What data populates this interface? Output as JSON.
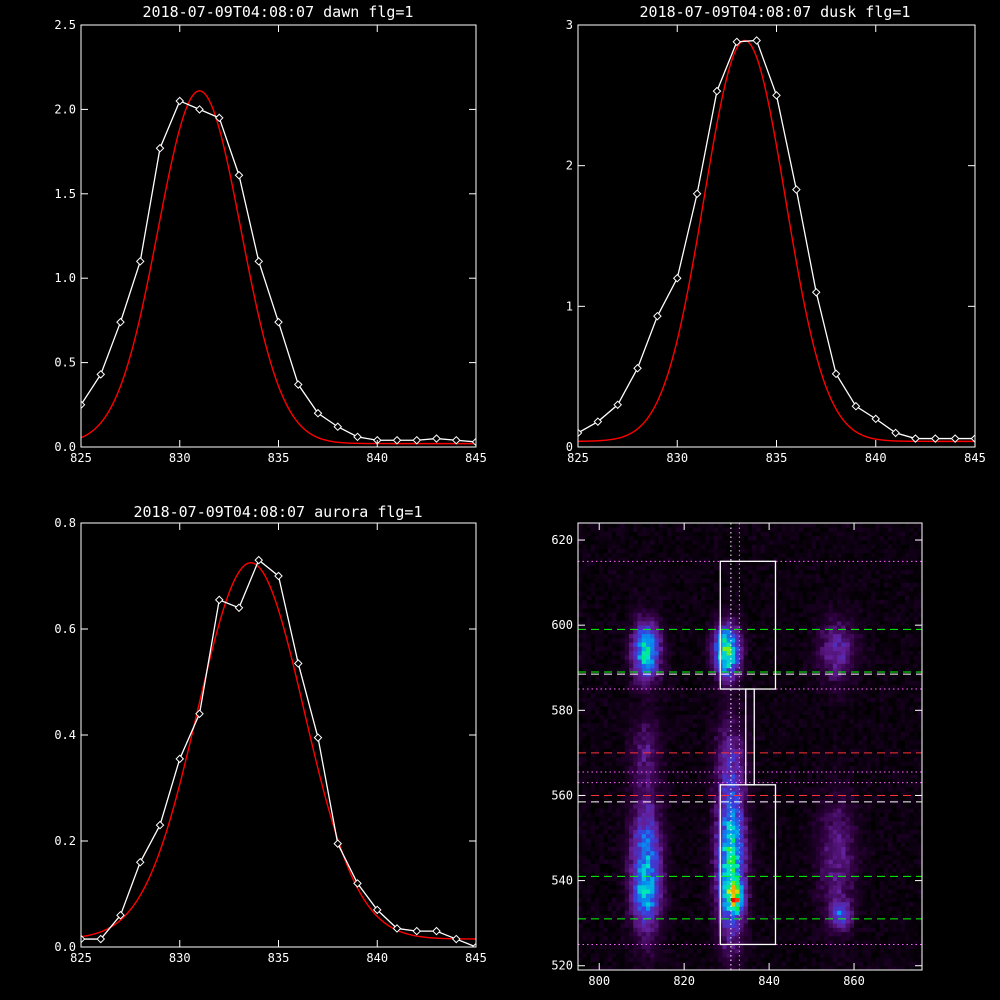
{
  "chart_data": [
    {
      "id": "dawn",
      "type": "line",
      "title": "2018-07-09T04:08:07 dawn flg=1",
      "xlim": [
        825,
        845
      ],
      "ylim": [
        0,
        2.5
      ],
      "xticks": [
        825,
        830,
        835,
        840,
        845
      ],
      "xtick_labels": [
        "825",
        "830",
        "835",
        "840",
        "845"
      ],
      "yticks": [
        0,
        0.5,
        1.0,
        1.5,
        2.0,
        2.5
      ],
      "ytick_labels": [
        "0.0",
        "0.5",
        "1.0",
        "1.5",
        "2.0",
        "2.5"
      ],
      "series": [
        {
          "style": "data",
          "color": "#ffffff",
          "marker": "diamond",
          "x": [
            825,
            826,
            827,
            828,
            829,
            830,
            831,
            832,
            833,
            834,
            835,
            836,
            837,
            838,
            839,
            840,
            841,
            842,
            843,
            844,
            845
          ],
          "y": [
            0.25,
            0.43,
            0.74,
            1.1,
            1.77,
            2.05,
            2.0,
            1.95,
            1.61,
            1.1,
            0.74,
            0.37,
            0.2,
            0.12,
            0.06,
            0.04,
            0.04,
            0.04,
            0.05,
            0.04,
            0.03
          ]
        },
        {
          "style": "fit",
          "color": "#ff0000",
          "model": "gaussian",
          "amplitude": 2.09,
          "center": 831.0,
          "sigma": 2.1,
          "baseline": 0.02
        }
      ]
    },
    {
      "id": "dusk",
      "type": "line",
      "title": "2018-07-09T04:08:07 dusk flg=1",
      "xlim": [
        825,
        845
      ],
      "ylim": [
        0,
        3
      ],
      "xticks": [
        825,
        830,
        835,
        840,
        845
      ],
      "xtick_labels": [
        "825",
        "830",
        "835",
        "840",
        "845"
      ],
      "yticks": [
        0,
        1,
        2,
        3
      ],
      "ytick_labels": [
        "0",
        "1",
        "2",
        "3"
      ],
      "series": [
        {
          "style": "data",
          "color": "#ffffff",
          "marker": "diamond",
          "x": [
            825,
            826,
            827,
            828,
            829,
            830,
            831,
            832,
            833,
            834,
            835,
            836,
            837,
            838,
            839,
            840,
            841,
            842,
            843,
            844,
            845
          ],
          "y": [
            0.1,
            0.18,
            0.3,
            0.56,
            0.93,
            1.2,
            1.8,
            2.53,
            2.88,
            2.89,
            2.5,
            1.83,
            1.1,
            0.52,
            0.29,
            0.2,
            0.1,
            0.06,
            0.06,
            0.06,
            0.06
          ]
        },
        {
          "style": "fit",
          "color": "#ff0000",
          "model": "gaussian",
          "amplitude": 2.85,
          "center": 833.4,
          "sigma": 2.05,
          "baseline": 0.04
        }
      ]
    },
    {
      "id": "aurora",
      "type": "line",
      "title": "2018-07-09T04:08:07 aurora flg=1",
      "xlim": [
        825,
        845
      ],
      "ylim": [
        0,
        0.8
      ],
      "xticks": [
        825,
        830,
        835,
        840,
        845
      ],
      "xtick_labels": [
        "825",
        "830",
        "835",
        "840",
        "845"
      ],
      "yticks": [
        0,
        0.2,
        0.4,
        0.6,
        0.8
      ],
      "ytick_labels": [
        "0.0",
        "0.2",
        "0.4",
        "0.6",
        "0.8"
      ],
      "series": [
        {
          "style": "data",
          "color": "#ffffff",
          "marker": "diamond",
          "x": [
            825,
            826,
            827,
            828,
            829,
            830,
            831,
            832,
            833,
            834,
            835,
            836,
            837,
            838,
            839,
            840,
            841,
            842,
            843,
            844,
            845
          ],
          "y": [
            0.015,
            0.015,
            0.06,
            0.16,
            0.23,
            0.355,
            0.44,
            0.655,
            0.64,
            0.73,
            0.7,
            0.535,
            0.395,
            0.195,
            0.12,
            0.07,
            0.035,
            0.03,
            0.03,
            0.015,
            0.0
          ]
        },
        {
          "style": "fit",
          "color": "#ff0000",
          "model": "gaussian",
          "amplitude": 0.71,
          "center": 833.6,
          "sigma": 2.7,
          "baseline": 0.015
        }
      ]
    },
    {
      "id": "spectrogram",
      "type": "heatmap",
      "title": "",
      "xlim": [
        795,
        876
      ],
      "ylim": [
        519,
        624
      ],
      "xticks": [
        800,
        820,
        840,
        860
      ],
      "xtick_labels": [
        "800",
        "820",
        "840",
        "860"
      ],
      "yticks": [
        520,
        540,
        560,
        580,
        600,
        620
      ],
      "ytick_labels": [
        "520",
        "540",
        "560",
        "580",
        "600",
        "620"
      ],
      "colormap": "rainbow-on-black",
      "blobs": [
        {
          "cx": 811,
          "cy": 594,
          "sx": 2.2,
          "sy": 4.5,
          "peak": 0.5
        },
        {
          "cx": 830,
          "cy": 594,
          "sx": 2.0,
          "sy": 4.0,
          "peak": 0.62
        },
        {
          "cx": 856,
          "cy": 594,
          "sx": 3.0,
          "sy": 5.0,
          "peak": 0.18
        },
        {
          "cx": 811,
          "cy": 543,
          "sx": 2.4,
          "sy": 10,
          "peak": 0.4
        },
        {
          "cx": 811,
          "cy": 536,
          "sx": 2.0,
          "sy": 3.0,
          "peak": 0.15
        },
        {
          "cx": 831,
          "cy": 544,
          "sx": 2.2,
          "sy": 11,
          "peak": 0.55
        },
        {
          "cx": 832,
          "cy": 536,
          "sx": 1.2,
          "sy": 2.2,
          "peak": 0.5
        },
        {
          "cx": 856,
          "cy": 545,
          "sx": 3.0,
          "sy": 10,
          "peak": 0.15
        },
        {
          "cx": 857,
          "cy": 532,
          "sx": 1.5,
          "sy": 2.0,
          "peak": 0.3
        },
        {
          "cx": 811,
          "cy": 570,
          "sx": 2.5,
          "sy": 6,
          "peak": 0.12
        },
        {
          "cx": 831,
          "cy": 568,
          "sx": 2.5,
          "sy": 8,
          "peak": 0.15
        }
      ],
      "boxes": [
        {
          "x0": 828.5,
          "x1": 841.5,
          "y0": 585,
          "y1": 615
        },
        {
          "x0": 834.5,
          "x1": 836.5,
          "y0": 562.5,
          "y1": 585
        },
        {
          "x0": 828.5,
          "x1": 841.5,
          "y0": 525,
          "y1": 562.5
        }
      ],
      "hlines": [
        {
          "y": 615,
          "color": "#ff66ff",
          "style": "dotted"
        },
        {
          "y": 599,
          "color": "#00ff00",
          "style": "dashed"
        },
        {
          "y": 589,
          "color": "#00ff00",
          "style": "dashed"
        },
        {
          "y": 588.5,
          "color": "#ffffff",
          "style": "dashed"
        },
        {
          "y": 585,
          "color": "#ff66ff",
          "style": "dotted"
        },
        {
          "y": 570,
          "color": "#ff3333",
          "style": "dashed"
        },
        {
          "y": 565.5,
          "color": "#ff66ff",
          "style": "dotted"
        },
        {
          "y": 563,
          "color": "#ff66ff",
          "style": "dotted"
        },
        {
          "y": 560,
          "color": "#ff3333",
          "style": "dashed"
        },
        {
          "y": 558.5,
          "color": "#ffffff",
          "style": "dashed"
        },
        {
          "y": 541,
          "color": "#00ff00",
          "style": "dashed"
        },
        {
          "y": 531,
          "color": "#00ff00",
          "style": "dashed"
        },
        {
          "y": 525,
          "color": "#ff66ff",
          "style": "dotted"
        }
      ],
      "vlines": [
        {
          "x": 831,
          "color": "#ffffff",
          "style": "dotted"
        },
        {
          "x": 833,
          "color": "#ff66ff",
          "style": "dotted"
        }
      ]
    }
  ]
}
